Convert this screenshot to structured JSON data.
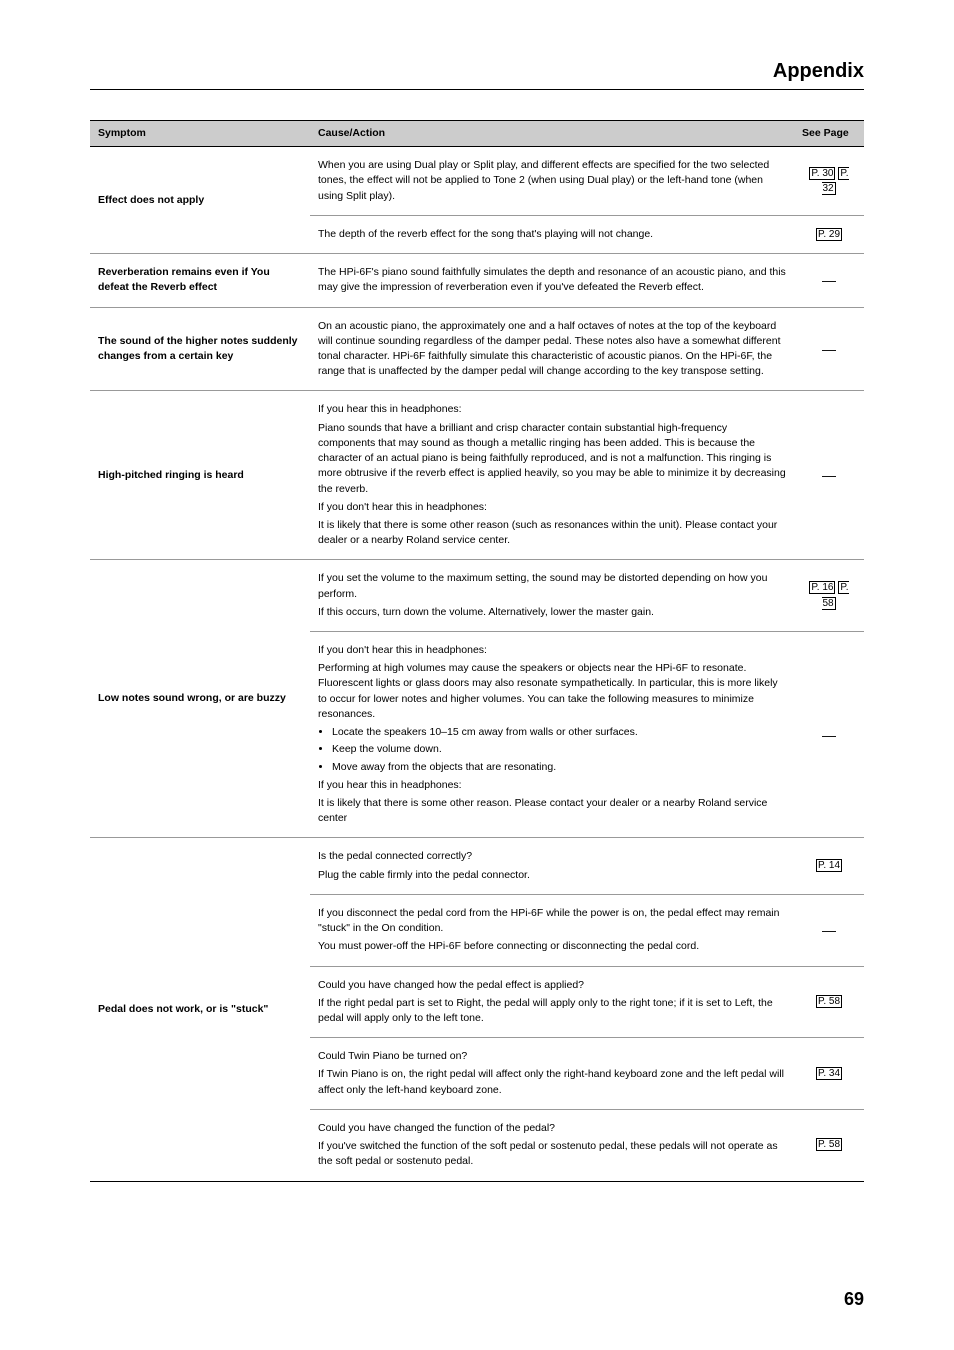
{
  "header": {
    "title": "Appendix"
  },
  "columns": {
    "symptom": "Symptom",
    "cause": "Cause/Action",
    "page": "See Page"
  },
  "rows": [
    {
      "symptom": "Effect does not apply",
      "causes": [
        {
          "text": "When you are using Dual play or Split play, and different effects are specified for the two selected tones, the effect will not be applied to Tone 2 (when using Dual play) or the left-hand tone (when using Split play).",
          "page_links": [
            "P. 30",
            "P. 32"
          ]
        },
        {
          "text": "The depth of the reverb effect for the song that's playing will not change.",
          "page_links": [
            "P. 29"
          ]
        }
      ]
    },
    {
      "symptom": "Reverberation remains even if You defeat the Reverb effect",
      "causes": [
        {
          "text": "The HPi-6F's piano sound faithfully simulates the depth and resonance of an acoustic piano, and this may give the impression of reverberation even if you've defeated the Reverb effect.",
          "page_dash": true
        }
      ]
    },
    {
      "symptom": "The sound of the higher notes suddenly changes from a certain key",
      "causes": [
        {
          "text": "On an acoustic piano, the approximately one and a half octaves of notes at the top of the keyboard will continue sounding regardless of the damper pedal. These notes also have a somewhat different tonal character. HPi-6F faithfully simulate this characteristic of acoustic pianos. On the HPi-6F, the range that is unaffected by the damper pedal will change according to the key transpose setting.",
          "page_dash": true
        }
      ]
    },
    {
      "symptom": "High-pitched ringing is heard",
      "causes": [
        {
          "paragraphs": [
            "If you hear this in headphones:",
            "Piano sounds that have a brilliant and crisp character contain substantial high-frequency components that may sound as though a metallic ringing has been added. This is because the character of an actual piano is being faithfully reproduced, and is not a malfunction. This ringing is more obtrusive if the reverb effect is applied heavily, so you may be able to minimize it by decreasing the reverb.",
            "If you don't hear this in headphones:",
            "It is likely that there is some other reason (such as resonances within the unit). Please contact your dealer or a nearby Roland service center."
          ],
          "page_dash": true
        }
      ]
    },
    {
      "symptom": "Low notes sound wrong, or are buzzy",
      "causes": [
        {
          "paragraphs": [
            "If you set the volume to the maximum setting, the sound may be distorted depending on how you perform.",
            "If this occurs, turn down the volume. Alternatively, lower the master gain."
          ],
          "page_links": [
            "P. 16",
            "P. 58"
          ]
        },
        {
          "paragraphs": [
            "If you don't hear this in headphones:",
            "Performing at high volumes may cause the speakers or objects near the HPi-6F to resonate. Fluorescent lights or glass doors may also resonate sympathetically. In particular, this is more likely to occur for lower notes and higher volumes. You can take the following measures to minimize resonances."
          ],
          "bullets": [
            "Locate the speakers 10–15 cm away from walls or other surfaces.",
            "Keep the volume down.",
            "Move away from the objects that are resonating."
          ],
          "paragraphs_after": [
            "If you hear this in headphones:",
            "It is likely that there is some other reason. Please contact your dealer or a nearby Roland service center"
          ],
          "page_dash": true
        }
      ]
    },
    {
      "symptom": "Pedal does not work, or is \"stuck\"",
      "causes": [
        {
          "paragraphs": [
            "Is the pedal connected correctly?",
            "Plug the cable firmly into the pedal connector."
          ],
          "page_links": [
            "P. 14"
          ]
        },
        {
          "paragraphs": [
            "If you disconnect the pedal cord from the HPi-6F while the power is on, the pedal effect may remain \"stuck\" in the On condition.",
            "You must power-off the HPi-6F before connecting or disconnecting the pedal cord."
          ],
          "page_dash": true
        },
        {
          "paragraphs": [
            "Could you have changed how the pedal effect is applied?",
            "If the right pedal part is set to Right, the pedal will apply only to the right tone; if it is set to Left, the pedal will apply only to the left tone."
          ],
          "page_links": [
            "P. 58"
          ]
        },
        {
          "paragraphs": [
            "Could Twin Piano be turned on?",
            "If Twin Piano is on, the right pedal will affect only the right-hand keyboard zone and the left pedal will affect only the left-hand keyboard zone."
          ],
          "page_links": [
            "P. 34"
          ]
        },
        {
          "paragraphs": [
            "Could you have changed the function of the pedal?",
            "If you've switched the function of the soft pedal or sostenuto pedal, these pedals will not operate as the soft pedal or sostenuto pedal."
          ],
          "page_links": [
            "P. 58"
          ]
        }
      ]
    }
  ],
  "page_number": "69"
}
